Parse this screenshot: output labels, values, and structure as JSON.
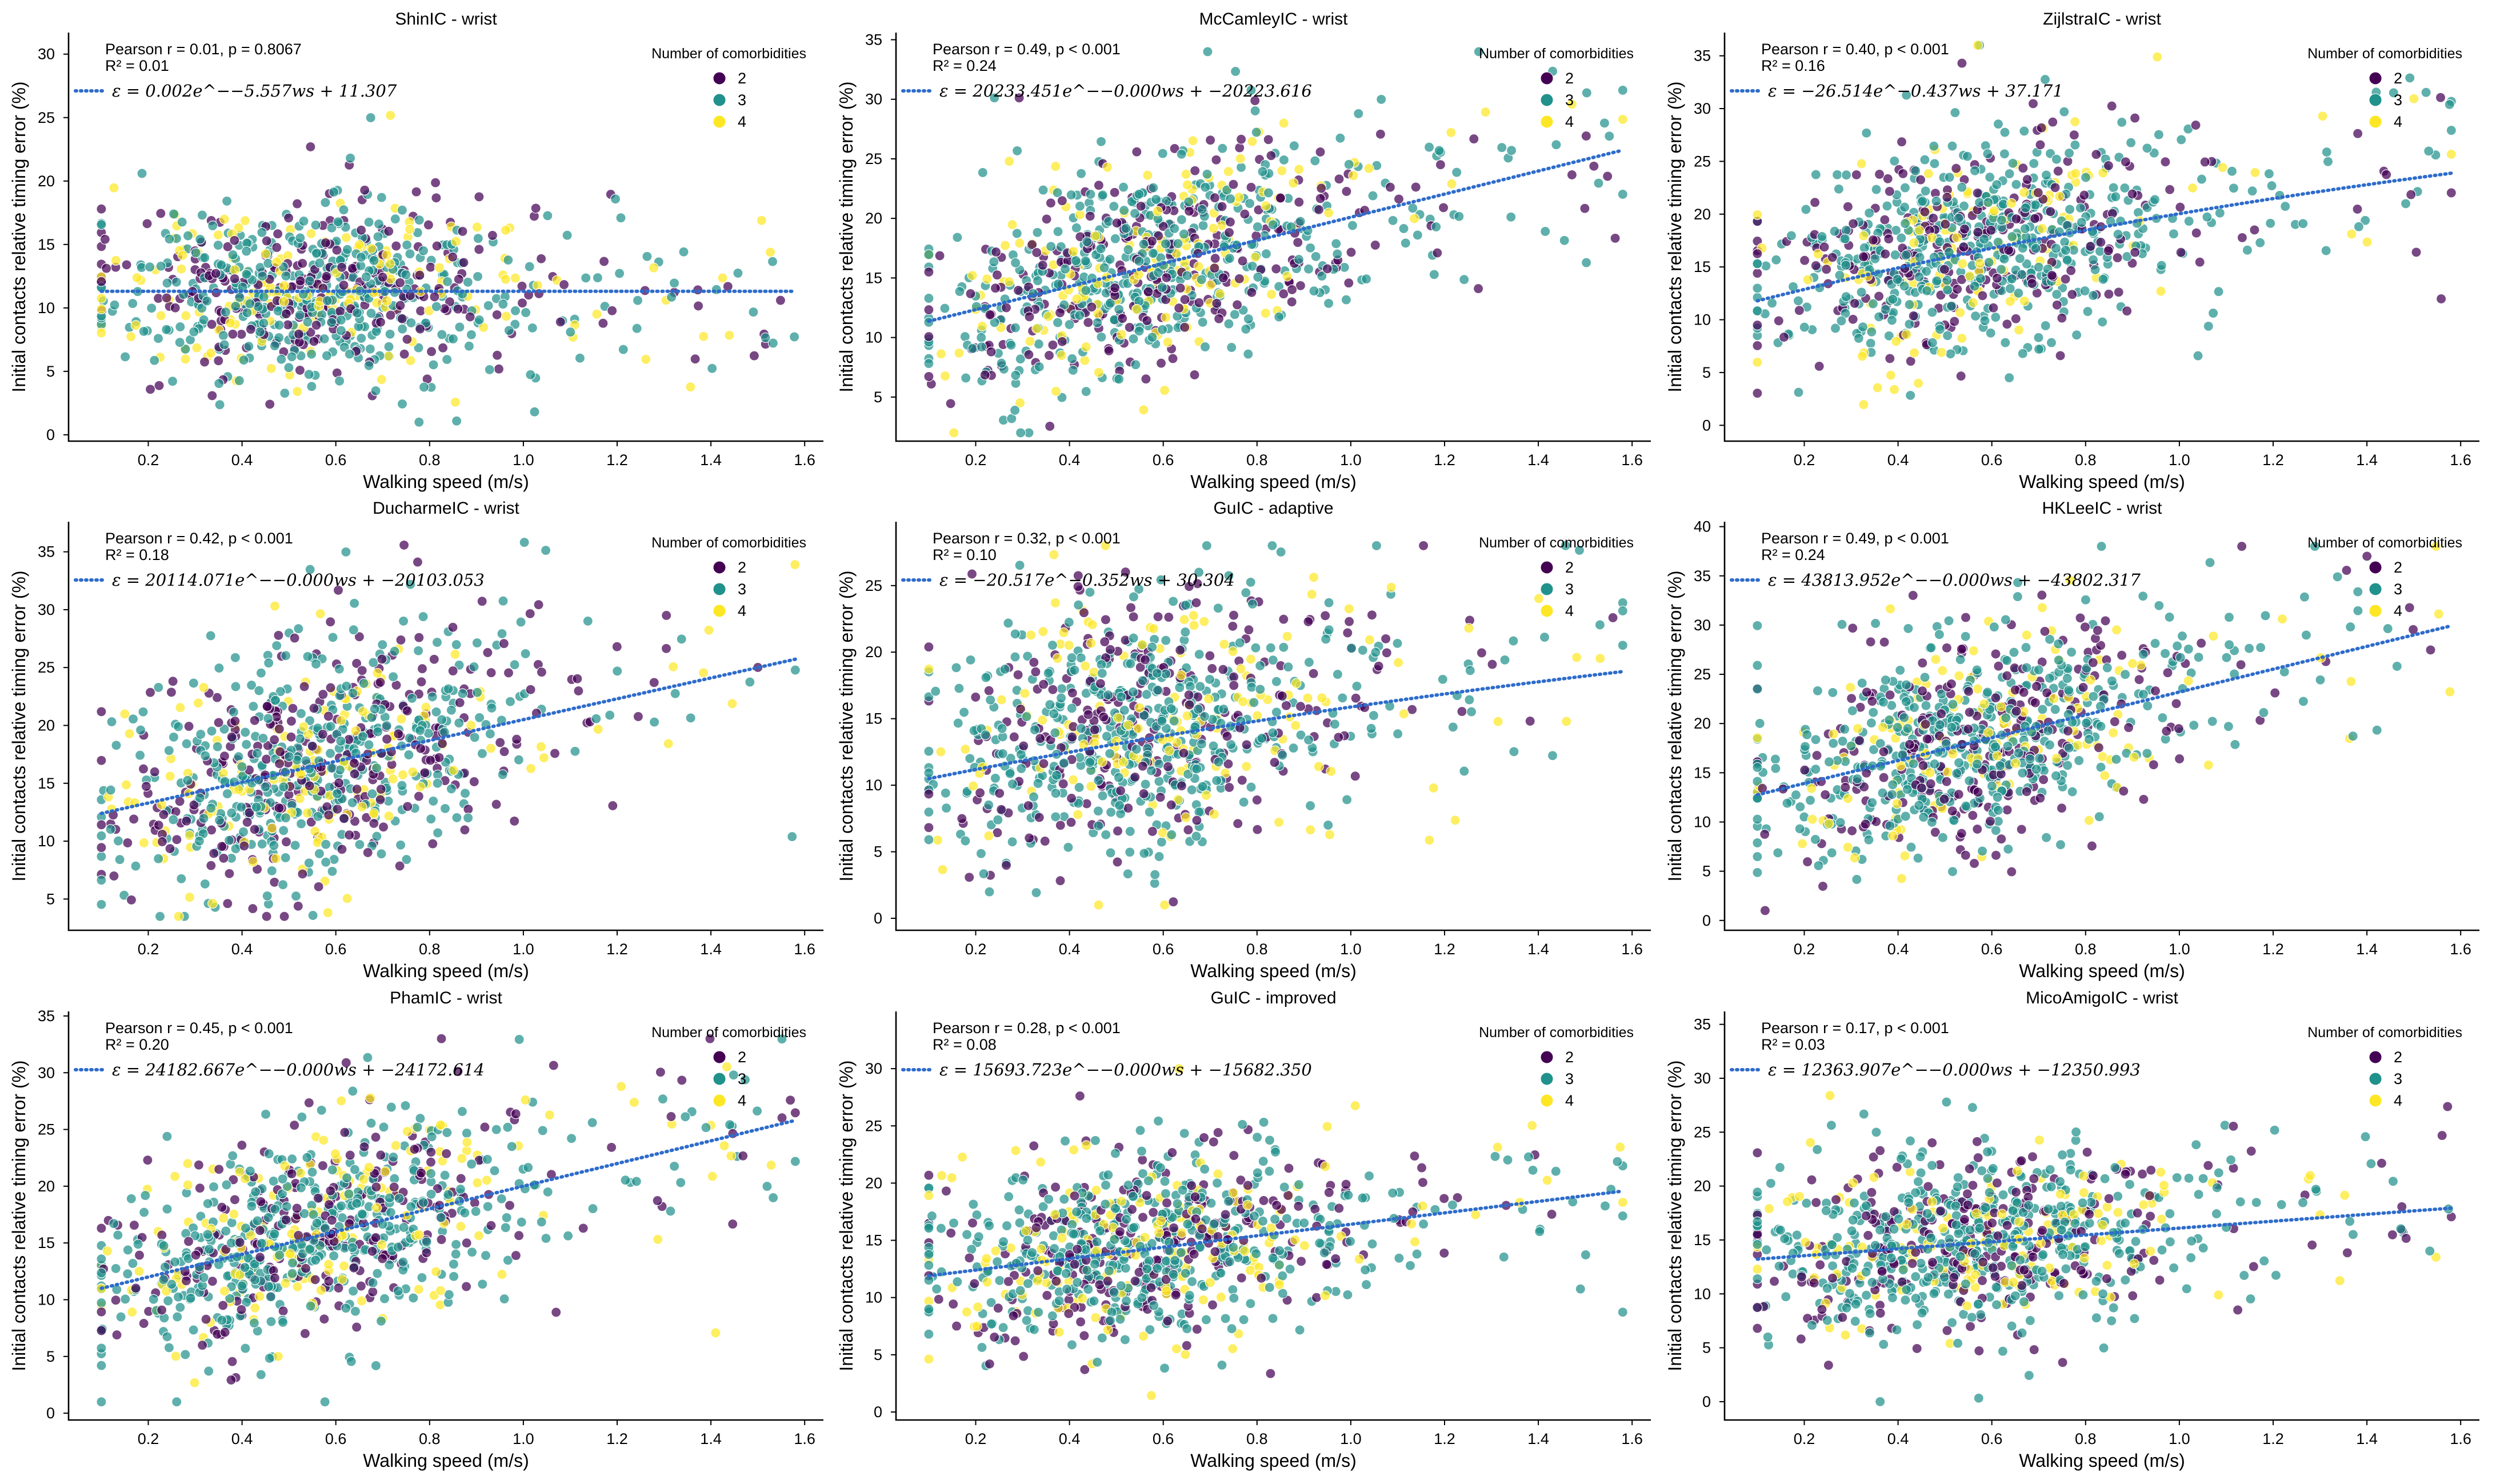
{
  "colors": {
    "c2": "#440154",
    "c3": "#21918c",
    "c4": "#fde725",
    "fit": "#2e6ccb",
    "axis": "#000000"
  },
  "legend": {
    "title": "Number of comorbidities",
    "labels": [
      "2",
      "3",
      "4"
    ]
  },
  "icons": {
    "fit-line": "dotted-line-icon",
    "legend-marker": "filled-circle-icon"
  },
  "chart_data": [
    {
      "type": "scatter",
      "title": "ShinIC - wrist",
      "xlabel": "Walking speed (m/s)",
      "ylabel": "Initial contacts relative timing error (%)",
      "xlim": [
        0.03,
        1.64
      ],
      "ylim": [
        -0.5,
        31.7
      ],
      "xticks": [
        0.2,
        0.4,
        0.6,
        0.8,
        1.0,
        1.2,
        1.4,
        1.6
      ],
      "xtick_labels": [
        "0.2",
        "0.4",
        "0.6",
        "0.8",
        "1.0",
        "1.2",
        "1.4",
        "1.6"
      ],
      "yticks": [
        0,
        5,
        10,
        15,
        20,
        25,
        30
      ],
      "ytick_labels": [
        "0",
        "5",
        "10",
        "15",
        "20",
        "25",
        "30"
      ],
      "stats": [
        "Pearson r = 0.01, p = 0.8067",
        "R² = 0.01"
      ],
      "fit_label": "ε = 0.002e^−−5.557ws + 11.307",
      "fit": {
        "a": 0.002,
        "b": 5.557,
        "c": 11.307,
        "x_range": [
          0.1,
          1.58
        ]
      },
      "scatter_params": {
        "seed": 11,
        "n": 900,
        "slope": 0.5,
        "intercept": 10.8,
        "noise": 3.4,
        "ymin": 1,
        "ymax": 31.5
      }
    },
    {
      "type": "scatter",
      "title": "McCamleyIC - wrist",
      "xlabel": "Walking speed (m/s)",
      "ylabel": "Initial contacts relative timing error (%)",
      "xlim": [
        0.03,
        1.64
      ],
      "ylim": [
        1.3,
        35.6
      ],
      "xticks": [
        0.2,
        0.4,
        0.6,
        0.8,
        1.0,
        1.2,
        1.4,
        1.6
      ],
      "xtick_labels": [
        "0.2",
        "0.4",
        "0.6",
        "0.8",
        "1.0",
        "1.2",
        "1.4",
        "1.6"
      ],
      "yticks": [
        5,
        10,
        15,
        20,
        25,
        30,
        35
      ],
      "ytick_labels": [
        "5",
        "10",
        "15",
        "20",
        "25",
        "30",
        "35"
      ],
      "stats": [
        "Pearson r = 0.49, p < 0.001",
        "R² = 0.24"
      ],
      "fit_label": "ε = 20233.451e^−−0.000ws + −20223.616",
      "fit": {
        "linear": [
          10.4,
          9.7
        ],
        "x_range": [
          0.1,
          1.58
        ]
      },
      "scatter_params": {
        "seed": 22,
        "n": 900,
        "slope": 9.7,
        "intercept": 10.4,
        "noise": 4.2,
        "ymin": 2,
        "ymax": 34
      }
    },
    {
      "type": "scatter",
      "title": "ZijlstraIC - wrist",
      "xlabel": "Walking speed (m/s)",
      "ylabel": "Initial contacts relative timing error (%)",
      "xlim": [
        0.03,
        1.64
      ],
      "ylim": [
        -1.5,
        37.2
      ],
      "xticks": [
        0.2,
        0.4,
        0.6,
        0.8,
        1.0,
        1.2,
        1.4,
        1.6
      ],
      "xtick_labels": [
        "0.2",
        "0.4",
        "0.6",
        "0.8",
        "1.0",
        "1.2",
        "1.4",
        "1.6"
      ],
      "yticks": [
        0,
        5,
        10,
        15,
        20,
        25,
        30,
        35
      ],
      "ytick_labels": [
        "0",
        "5",
        "10",
        "15",
        "20",
        "25",
        "30",
        "35"
      ],
      "stats": [
        "Pearson r = 0.40, p < 0.001",
        "R² = 0.16"
      ],
      "fit_label": "ε = −26.514e^−0.437ws + 37.171",
      "fit": {
        "a": -26.514,
        "b": 0.437,
        "c": 37.171,
        "x_range": [
          0.1,
          1.58
        ]
      },
      "scatter_params": {
        "seed": 33,
        "n": 900,
        "slope": 8.0,
        "intercept": 12.3,
        "noise": 4.4,
        "ymin": 0,
        "ymax": 36
      }
    },
    {
      "type": "scatter",
      "title": "DucharmeIC - wrist",
      "xlabel": "Walking speed (m/s)",
      "ylabel": "Initial contacts relative timing error (%)",
      "xlim": [
        0.03,
        1.64
      ],
      "ylim": [
        2.3,
        37.6
      ],
      "xticks": [
        0.2,
        0.4,
        0.6,
        0.8,
        1.0,
        1.2,
        1.4,
        1.6
      ],
      "xtick_labels": [
        "0.2",
        "0.4",
        "0.6",
        "0.8",
        "1.0",
        "1.2",
        "1.4",
        "1.6"
      ],
      "yticks": [
        5,
        10,
        15,
        20,
        25,
        30,
        35
      ],
      "ytick_labels": [
        "5",
        "10",
        "15",
        "20",
        "25",
        "30",
        "35"
      ],
      "stats": [
        "Pearson r = 0.42, p < 0.001",
        "R² = 0.18"
      ],
      "fit_label": "ε = 20114.071e^−−0.000ws + −20103.053",
      "fit": {
        "linear": [
          11.5,
          9.0
        ],
        "x_range": [
          0.1,
          1.58
        ]
      },
      "scatter_params": {
        "seed": 44,
        "n": 900,
        "slope": 9.0,
        "intercept": 11.5,
        "noise": 4.8,
        "ymin": 3.5,
        "ymax": 36
      }
    },
    {
      "type": "scatter",
      "title": "GuIC - adaptive",
      "xlabel": "Walking speed (m/s)",
      "ylabel": "Initial contacts relative timing error (%)",
      "xlim": [
        0.03,
        1.64
      ],
      "ylim": [
        -0.9,
        29.8
      ],
      "xticks": [
        0.2,
        0.4,
        0.6,
        0.8,
        1.0,
        1.2,
        1.4,
        1.6
      ],
      "xtick_labels": [
        "0.2",
        "0.4",
        "0.6",
        "0.8",
        "1.0",
        "1.2",
        "1.4",
        "1.6"
      ],
      "yticks": [
        0,
        5,
        10,
        15,
        20,
        25
      ],
      "ytick_labels": [
        "0",
        "5",
        "10",
        "15",
        "20",
        "25"
      ],
      "stats": [
        "Pearson r = 0.32, p < 0.001",
        "R² = 0.10"
      ],
      "fit_label": "ε = −20.517e^−0.352ws + 30.304",
      "fit": {
        "a": -20.517,
        "b": 0.352,
        "c": 30.304,
        "x_range": [
          0.1,
          1.58
        ]
      },
      "scatter_params": {
        "seed": 55,
        "n": 900,
        "slope": 6.0,
        "intercept": 10.4,
        "noise": 4.6,
        "ymin": 1,
        "ymax": 28
      }
    },
    {
      "type": "scatter",
      "title": "HKLeeIC - wrist",
      "xlabel": "Walking speed (m/s)",
      "ylabel": "Initial contacts relative timing error (%)",
      "xlim": [
        0.03,
        1.64
      ],
      "ylim": [
        -1.0,
        40.5
      ],
      "xticks": [
        0.2,
        0.4,
        0.6,
        0.8,
        1.0,
        1.2,
        1.4,
        1.6
      ],
      "xtick_labels": [
        "0.2",
        "0.4",
        "0.6",
        "0.8",
        "1.0",
        "1.2",
        "1.4",
        "1.6"
      ],
      "yticks": [
        0,
        5,
        10,
        15,
        20,
        25,
        30,
        35,
        40
      ],
      "ytick_labels": [
        "0",
        "5",
        "10",
        "15",
        "20",
        "25",
        "30",
        "35",
        "40"
      ],
      "stats": [
        "Pearson r = 0.49, p < 0.001",
        "R² = 0.24"
      ],
      "fit_label": "ε = 43813.952e^−−0.000ws + −43802.317",
      "fit": {
        "linear": [
          11.6,
          11.6
        ],
        "x_range": [
          0.1,
          1.58
        ]
      },
      "scatter_params": {
        "seed": 66,
        "n": 900,
        "slope": 11.6,
        "intercept": 11.6,
        "noise": 5.0,
        "ymin": 1,
        "ymax": 38
      }
    },
    {
      "type": "scatter",
      "title": "PhamIC - wrist",
      "xlabel": "Walking speed (m/s)",
      "ylabel": "Initial contacts relative timing error (%)",
      "xlim": [
        0.03,
        1.64
      ],
      "ylim": [
        -0.6,
        35.4
      ],
      "xticks": [
        0.2,
        0.4,
        0.6,
        0.8,
        1.0,
        1.2,
        1.4,
        1.6
      ],
      "xtick_labels": [
        "0.2",
        "0.4",
        "0.6",
        "0.8",
        "1.0",
        "1.2",
        "1.4",
        "1.6"
      ],
      "yticks": [
        0,
        5,
        10,
        15,
        20,
        25,
        30,
        35
      ],
      "ytick_labels": [
        "0",
        "5",
        "10",
        "15",
        "20",
        "25",
        "30",
        "35"
      ],
      "stats": [
        "Pearson r = 0.45, p < 0.001",
        "R² = 0.20"
      ],
      "fit_label": "ε = 24182.667e^−−0.000ws + −24172.614",
      "fit": {
        "linear": [
          10.0,
          10.0
        ],
        "x_range": [
          0.1,
          1.58
        ]
      },
      "scatter_params": {
        "seed": 77,
        "n": 900,
        "slope": 10.0,
        "intercept": 10.0,
        "noise": 4.4,
        "ymin": 1,
        "ymax": 33
      }
    },
    {
      "type": "scatter",
      "title": "GuIC - improved",
      "xlabel": "Walking speed (m/s)",
      "ylabel": "Initial contacts relative timing error (%)",
      "xlim": [
        0.03,
        1.64
      ],
      "ylim": [
        -0.7,
        35.0
      ],
      "xticks": [
        0.2,
        0.4,
        0.6,
        0.8,
        1.0,
        1.2,
        1.4,
        1.6
      ],
      "xtick_labels": [
        "0.2",
        "0.4",
        "0.6",
        "0.8",
        "1.0",
        "1.2",
        "1.4",
        "1.6"
      ],
      "yticks": [
        0,
        5,
        10,
        15,
        20,
        25,
        30
      ],
      "ytick_labels": [
        "0",
        "5",
        "10",
        "15",
        "20",
        "25",
        "30"
      ],
      "stats": [
        "Pearson r = 0.28, p < 0.001",
        "R² = 0.08"
      ],
      "fit_label": "ε = 15693.723e^−−0.000ws + −15682.350",
      "fit": {
        "linear": [
          11.4,
          5.0
        ],
        "x_range": [
          0.1,
          1.58
        ]
      },
      "scatter_params": {
        "seed": 88,
        "n": 900,
        "slope": 5.0,
        "intercept": 11.4,
        "noise": 4.0,
        "ymin": 1,
        "ymax": 30
      }
    },
    {
      "type": "scatter",
      "title": "MicoAmigoIC - wrist",
      "xlabel": "Walking speed (m/s)",
      "ylabel": "Initial contacts relative timing error (%)",
      "xlim": [
        0.03,
        1.64
      ],
      "ylim": [
        -1.7,
        36.2
      ],
      "xticks": [
        0.2,
        0.4,
        0.6,
        0.8,
        1.0,
        1.2,
        1.4,
        1.6
      ],
      "xtick_labels": [
        "0.2",
        "0.4",
        "0.6",
        "0.8",
        "1.0",
        "1.2",
        "1.4",
        "1.6"
      ],
      "yticks": [
        0,
        5,
        10,
        15,
        20,
        25,
        30,
        35
      ],
      "ytick_labels": [
        "0",
        "5",
        "10",
        "15",
        "20",
        "25",
        "30",
        "35"
      ],
      "stats": [
        "Pearson r = 0.17, p < 0.001",
        "R² = 0.03"
      ],
      "fit_label": "ε = 12363.907e^−−0.000ws + −12350.993",
      "fit": {
        "linear": [
          12.9,
          3.2
        ],
        "x_range": [
          0.1,
          1.58
        ]
      },
      "scatter_params": {
        "seed": 99,
        "n": 900,
        "slope": 3.2,
        "intercept": 12.9,
        "noise": 4.0,
        "ymin": 0,
        "ymax": 33
      }
    }
  ]
}
